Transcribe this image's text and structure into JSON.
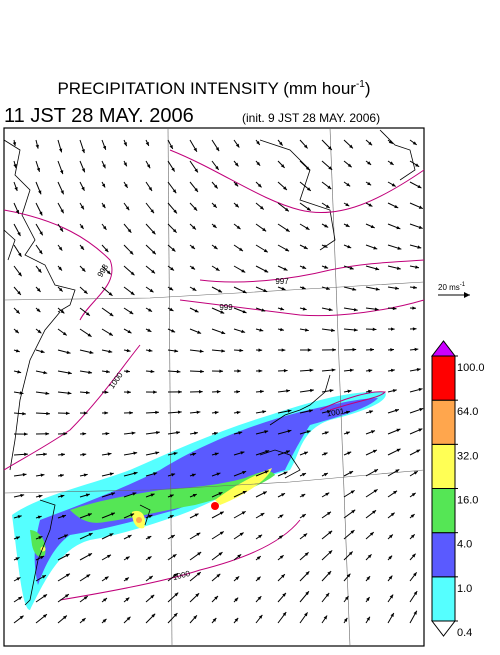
{
  "title": {
    "text": "PRECIPITATION INTENSITY (mm hour",
    "superscript": "-1",
    "suffix": ")"
  },
  "valid_time": "11 JST 28 MAY. 2006",
  "init_time": "(init. 9 JST 28 MAY. 2006)",
  "vector_scale": {
    "text": "20 ms",
    "superscript": "-1"
  },
  "isobar_labels": [
    "998",
    "997",
    "999",
    "1000",
    "1001",
    "1000"
  ],
  "colorbar": {
    "levels": [
      {
        "value": 0.4,
        "label": "0.4"
      },
      {
        "value": 1,
        "label": "1.0"
      },
      {
        "value": 4,
        "label": "4.0"
      },
      {
        "value": 16,
        "label": "16.0"
      },
      {
        "value": 32,
        "label": "32.0"
      },
      {
        "value": 64,
        "label": "64.0"
      },
      {
        "value": 100,
        "label": "100.0"
      }
    ],
    "colors": [
      "#55ffff",
      "#5a5aff",
      "#55e655",
      "#ffff55",
      "#ffa64d",
      "#ff0000"
    ],
    "under_color": "#ffffff",
    "over_color": "#cc00ff"
  }
}
